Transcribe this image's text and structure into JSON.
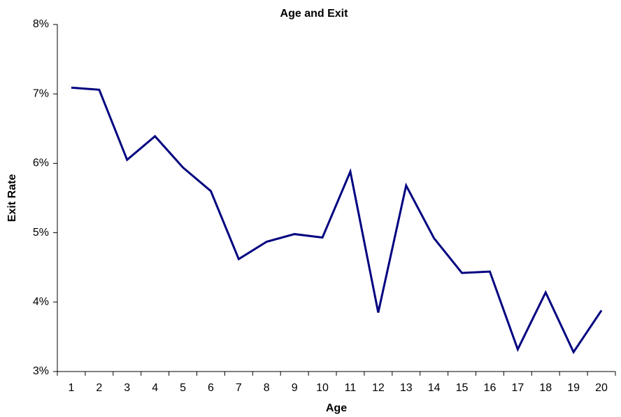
{
  "chart_data": {
    "type": "line",
    "title": "Age and Exit",
    "x_label": "Age",
    "y_label": "Exit Rate",
    "categories": [
      "1",
      "2",
      "3",
      "4",
      "5",
      "6",
      "7",
      "8",
      "9",
      "10",
      "11",
      "12",
      "13",
      "14",
      "15",
      "16",
      "17",
      "18",
      "19",
      "20"
    ],
    "series": [
      {
        "name": "Exit Rate",
        "color": "#000080",
        "values": [
          7.09,
          7.06,
          6.05,
          6.39,
          5.94,
          5.6,
          4.62,
          4.87,
          4.98,
          4.93,
          5.88,
          3.85,
          5.68,
          4.92,
          4.42,
          4.44,
          3.32,
          4.14,
          3.28,
          3.88
        ]
      }
    ],
    "ylim": [
      3,
      8
    ],
    "yticks": [
      {
        "value": 3,
        "label": "3%"
      },
      {
        "value": 4,
        "label": "4%"
      },
      {
        "value": 5,
        "label": "5%"
      },
      {
        "value": 6,
        "label": "6%"
      },
      {
        "value": 7,
        "label": "7%"
      },
      {
        "value": 8,
        "label": "8%"
      }
    ],
    "grid": false
  }
}
